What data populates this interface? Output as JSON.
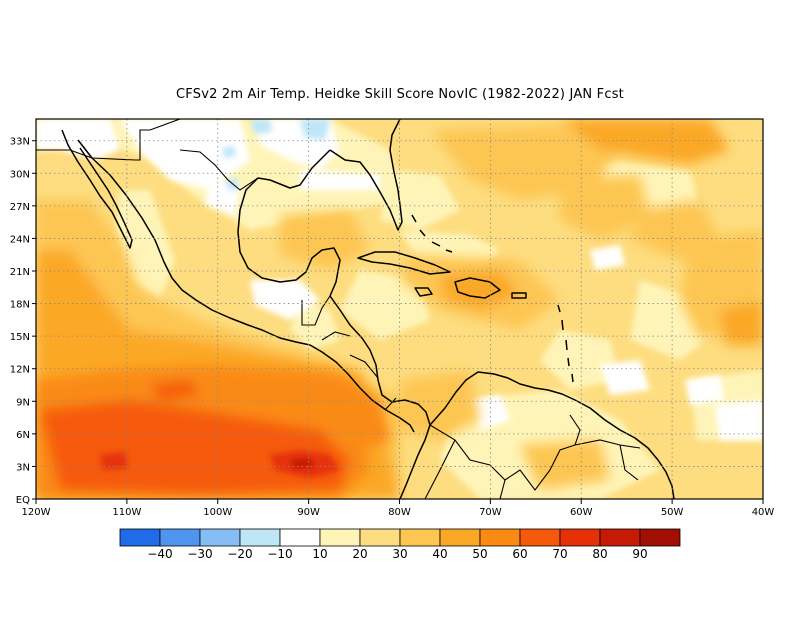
{
  "title": "CFSv2  2m Air Temp. Heidke Skill Score NovIC (1982-2022) JAN Fcst",
  "map": {
    "lon_ticks": [
      "120W",
      "110W",
      "100W",
      "90W",
      "80W",
      "70W",
      "60W",
      "50W",
      "40W"
    ],
    "lat_ticks": [
      "EQ",
      "3N",
      "6N",
      "9N",
      "12N",
      "15N",
      "18N",
      "21N",
      "24N",
      "27N",
      "30N",
      "33N"
    ],
    "lon_range": [
      -120,
      -40
    ],
    "lat_range": [
      0,
      35
    ],
    "grid": "dotted"
  },
  "colorbar": {
    "levels": [
      "-40",
      "-30",
      "-20",
      "-10",
      "10",
      "20",
      "30",
      "40",
      "50",
      "60",
      "70",
      "80",
      "90"
    ],
    "colors": [
      "#1f6be8",
      "#4f95f0",
      "#86bdf5",
      "#bfe6f7",
      "#ffffff",
      "#fff4b8",
      "#fddd80",
      "#fdc653",
      "#fba827",
      "#fa8a12",
      "#f55a0c",
      "#e63008",
      "#c61a05",
      "#a10f03"
    ]
  }
}
